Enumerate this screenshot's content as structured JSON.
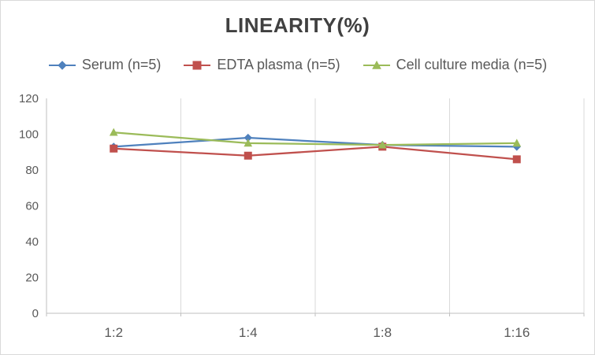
{
  "chart_data": {
    "type": "line",
    "title": "LINEARITY(%)",
    "categories": [
      "1:2",
      "1:4",
      "1:8",
      "1:16"
    ],
    "series": [
      {
        "name": "Serum (n=5)",
        "color": "#4F81BD",
        "marker": "diamond",
        "values": [
          93,
          98,
          94,
          93
        ]
      },
      {
        "name": "EDTA plasma (n=5)",
        "color": "#C0504D",
        "marker": "square",
        "values": [
          92,
          88,
          93,
          86
        ]
      },
      {
        "name": "Cell culture media (n=5)",
        "color": "#9BBB59",
        "marker": "triangle",
        "values": [
          101,
          95,
          94,
          95
        ]
      }
    ],
    "xlabel": "",
    "ylabel": "",
    "ylim": [
      0,
      120
    ],
    "yticks": [
      0,
      20,
      40,
      60,
      80,
      100,
      120
    ],
    "grid": "vertical-only",
    "legend_position": "top",
    "title_color": "#404040",
    "tick_label_color": "#595959",
    "axis_color": "#BFBFBF",
    "grid_color": "#D9D9D9"
  }
}
